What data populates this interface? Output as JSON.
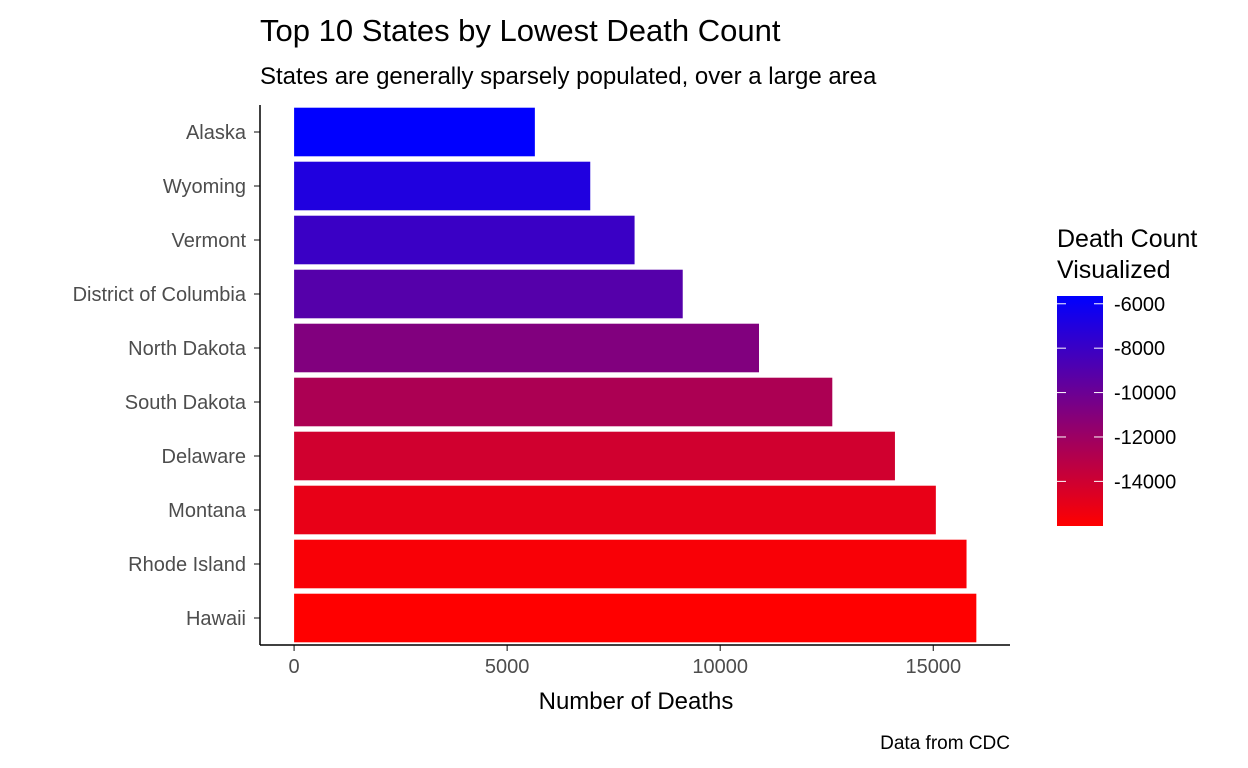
{
  "chart_data": {
    "type": "bar",
    "orientation": "horizontal",
    "title": "Top 10 States by Lowest Death Count",
    "subtitle": "States are generally sparsely populated, over a large area",
    "xlabel": "Number of Deaths",
    "ylabel": "",
    "caption": "Data from CDC",
    "categories": [
      "Alaska",
      "Wyoming",
      "Vermont",
      "District of Columbia",
      "North Dakota",
      "South Dakota",
      "Delaware",
      "Montana",
      "Rhode Island",
      "Hawaii"
    ],
    "values": [
      5650,
      6950,
      7990,
      9120,
      10910,
      12630,
      14100,
      15060,
      15780,
      16010
    ],
    "xlim": [
      -800,
      16800
    ],
    "x_ticks": [
      0,
      5000,
      10000,
      15000
    ],
    "x_tick_labels": [
      "0",
      "5000",
      "10000",
      "15000"
    ],
    "grid": false,
    "legend": {
      "title_lines": [
        "Death Count",
        "Visualized"
      ],
      "position": "right",
      "scale_min": -16010,
      "scale_max": -5650,
      "ticks": [
        -6000,
        -8000,
        -10000,
        -12000,
        -14000
      ],
      "tick_labels": [
        "-6000",
        "-8000",
        "-10000",
        "-12000",
        "-14000"
      ],
      "color_low_value": "#ff0000",
      "color_high_value": "#0000ff"
    }
  }
}
